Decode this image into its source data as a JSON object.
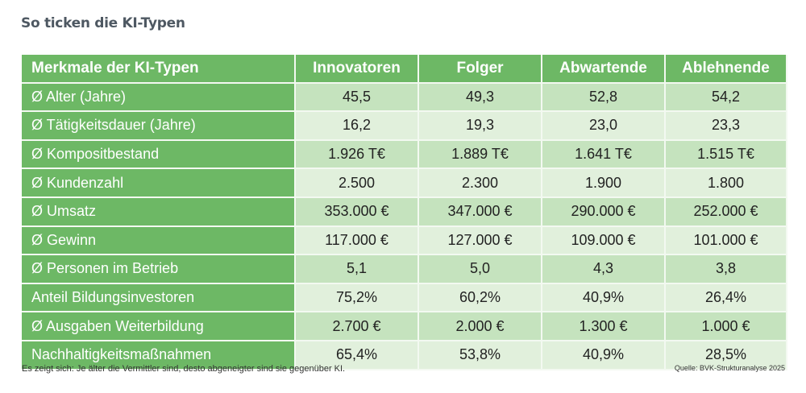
{
  "title": "So ticken die KI-Typen",
  "table": {
    "headers": [
      "Merkmale der KI-Typen",
      "Innovatoren",
      "Folger",
      "Abwartende",
      "Ablehnende"
    ],
    "rows": [
      {
        "label": "Ø Alter (Jahre)",
        "values": [
          "45,5",
          "49,3",
          "52,8",
          "54,2"
        ]
      },
      {
        "label": "Ø Tätigkeitsdauer (Jahre)",
        "values": [
          "16,2",
          "19,3",
          "23,0",
          "23,3"
        ]
      },
      {
        "label": "Ø Kompositbestand",
        "values": [
          "1.926 T€",
          "1.889 T€",
          "1.641 T€",
          "1.515 T€"
        ]
      },
      {
        "label": "Ø Kundenzahl",
        "values": [
          "2.500",
          "2.300",
          "1.900",
          "1.800"
        ]
      },
      {
        "label": "Ø Umsatz",
        "values": [
          "353.000 €",
          "347.000 €",
          "290.000 €",
          "252.000 €"
        ]
      },
      {
        "label": "Ø Gewinn",
        "values": [
          "117.000 €",
          "127.000 €",
          "109.000 €",
          "101.000 €"
        ]
      },
      {
        "label": "Ø Personen im Betrieb",
        "values": [
          "5,1",
          "5,0",
          "4,3",
          "3,8"
        ]
      },
      {
        "label": "Anteil Bildungsinvestoren",
        "values": [
          "75,2%",
          "60,2%",
          "40,9%",
          "26,4%"
        ]
      },
      {
        "label": "Ø Ausgaben Weiterbildung",
        "values": [
          "2.700 €",
          "2.000 €",
          "1.300 €",
          "1.000 €"
        ]
      },
      {
        "label": "Nachhaltigkeitsmaßnahmen",
        "values": [
          "65,4%",
          "53,8%",
          "40,9%",
          "28,5%"
        ]
      }
    ]
  },
  "footnote": "Es zeigt sich: Je älter die Vermittler sind, desto abgeneigter sind sie gegenüber KI.",
  "source": "Quelle: BVK-Strukturanalyse 2025"
}
